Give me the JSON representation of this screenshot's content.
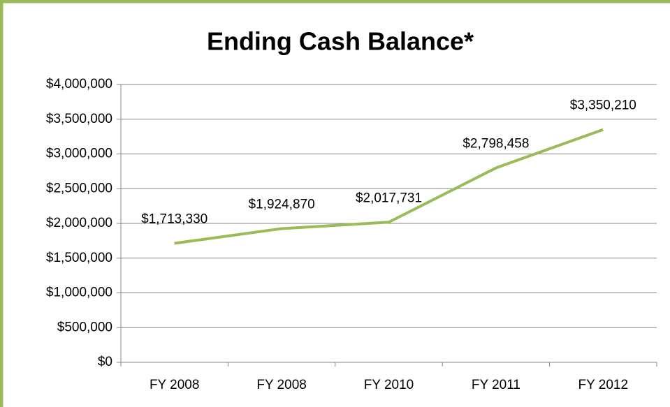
{
  "chart_data": {
    "type": "line",
    "title": "Ending Cash Balance*",
    "categories": [
      "FY 2008",
      "FY 2008",
      "FY 2010",
      "FY 2011",
      "FY 2012"
    ],
    "series": [
      {
        "name": "Ending Cash Balance",
        "color": "#9bbb59",
        "values": [
          1713330,
          1924870,
          2017731,
          2798458,
          3350210
        ],
        "value_labels": [
          "$1,713,330",
          "$1,924,870",
          "$2,017,731",
          "$2,798,458",
          "$3,350,210"
        ]
      }
    ],
    "ylim": [
      0,
      4000000
    ],
    "yticks": [
      {
        "value": 0,
        "label": "$0"
      },
      {
        "value": 500000,
        "label": "$500,000"
      },
      {
        "value": 1000000,
        "label": "$1,000,000"
      },
      {
        "value": 1500000,
        "label": "$1,500,000"
      },
      {
        "value": 2000000,
        "label": "$2,000,000"
      },
      {
        "value": 2500000,
        "label": "$2,500,000"
      },
      {
        "value": 3000000,
        "label": "$3,000,000"
      },
      {
        "value": 3500000,
        "label": "$3,500,000"
      },
      {
        "value": 4000000,
        "label": "$4,000,000"
      }
    ],
    "grid": true,
    "legend": false
  }
}
